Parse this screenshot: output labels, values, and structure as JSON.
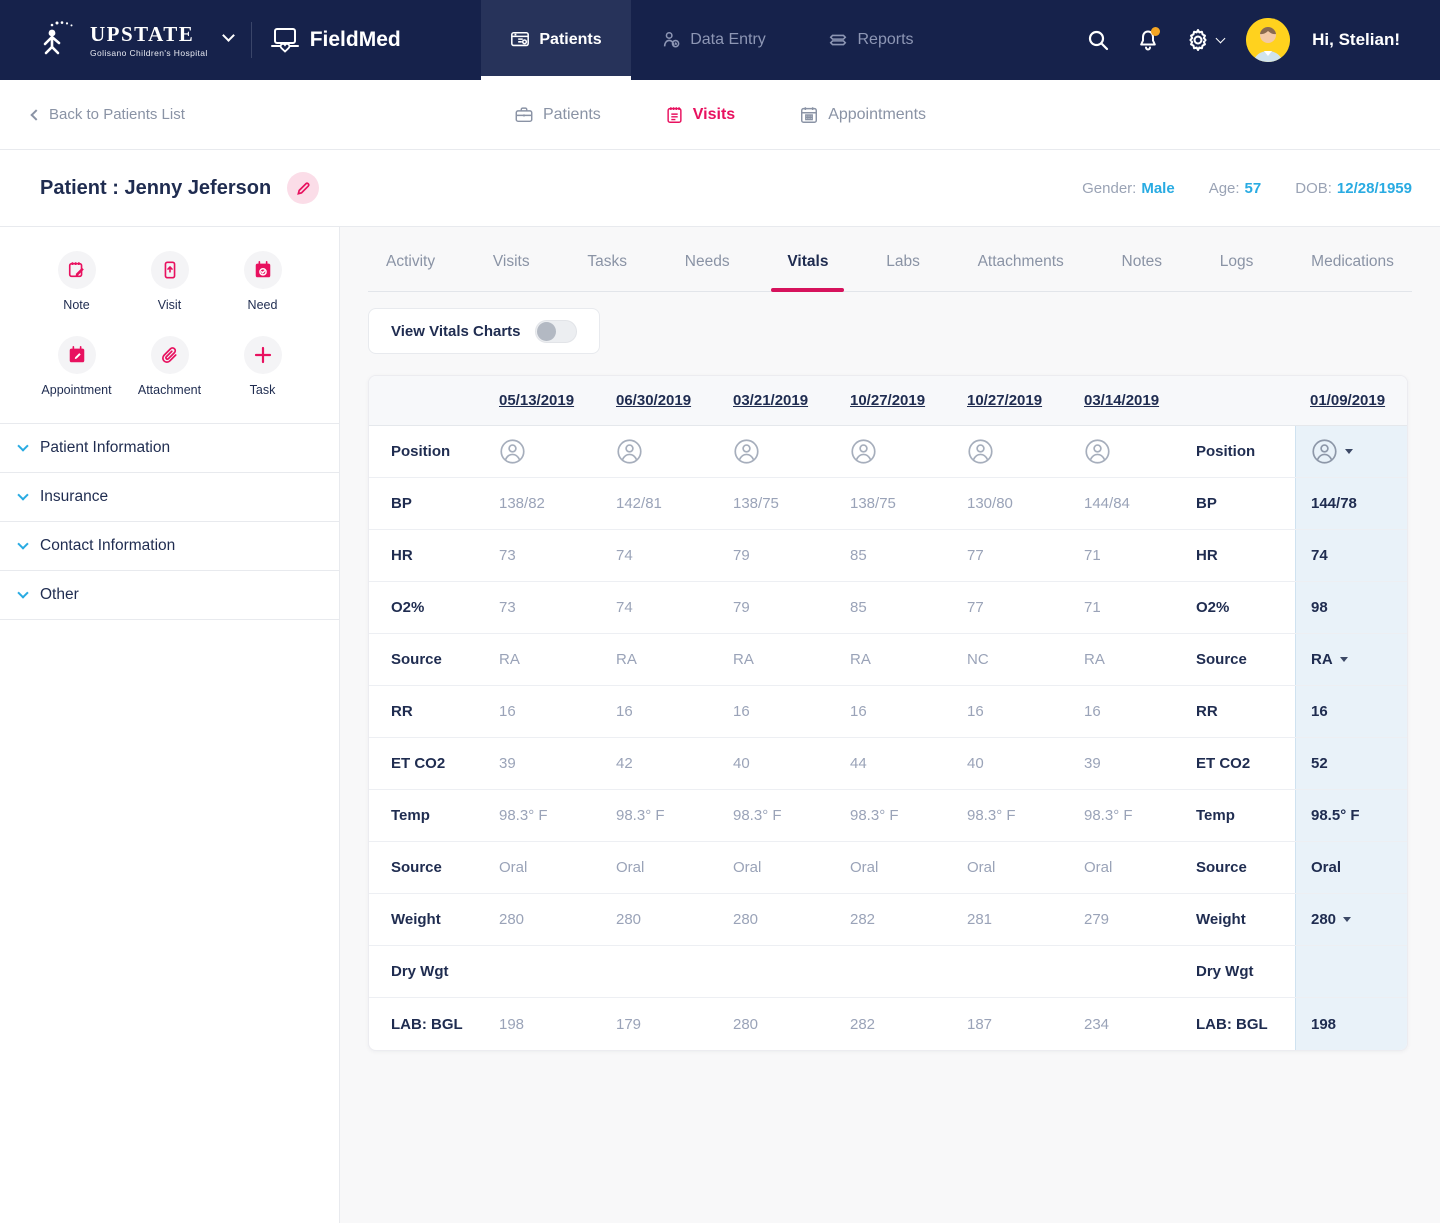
{
  "colors": {
    "navy": "#16224b",
    "accent": "#e8115f",
    "link_blue": "#29abe2",
    "highlight_col": "#e9f2f9",
    "notification_dot": "#f5a623"
  },
  "topnav": {
    "brand_name": "UPSTATE",
    "brand_subtitle": "Golisano Children's Hospital",
    "app_name": "FieldMed",
    "tabs": [
      {
        "label": "Patients",
        "icon": "patients-icon",
        "active": true
      },
      {
        "label": "Data Entry",
        "icon": "data-entry-icon",
        "active": false
      },
      {
        "label": "Reports",
        "icon": "reports-icon",
        "active": false
      }
    ],
    "greeting": "Hi, Stelian!"
  },
  "subnav": {
    "back_label": "Back to Patients List",
    "tabs": [
      {
        "label": "Patients",
        "icon": "briefcase-icon",
        "active": false
      },
      {
        "label": "Visits",
        "icon": "visits-icon",
        "active": true
      },
      {
        "label": "Appointments",
        "icon": "appointments-icon",
        "active": false
      }
    ]
  },
  "patient_header": {
    "title": "Patient : Jenny Jeferson",
    "fields": [
      {
        "label": "Gender:",
        "value": "Male"
      },
      {
        "label": "Age:",
        "value": "57"
      },
      {
        "label": "DOB:",
        "value": "12/28/1959"
      }
    ]
  },
  "sidebar": {
    "actions": [
      {
        "label": "Note",
        "icon": "note-icon"
      },
      {
        "label": "Visit",
        "icon": "visit-icon"
      },
      {
        "label": "Need",
        "icon": "need-icon"
      },
      {
        "label": "Appointment",
        "icon": "appointment-icon"
      },
      {
        "label": "Attachment",
        "icon": "attachment-icon"
      },
      {
        "label": "Task",
        "icon": "task-icon"
      }
    ],
    "sections": [
      {
        "label": "Patient Information"
      },
      {
        "label": "Insurance"
      },
      {
        "label": "Contact Information"
      },
      {
        "label": "Other"
      }
    ]
  },
  "main": {
    "tabs": [
      {
        "label": "Activity"
      },
      {
        "label": "Visits"
      },
      {
        "label": "Tasks"
      },
      {
        "label": "Needs"
      },
      {
        "label": "Vitals",
        "active": true
      },
      {
        "label": "Labs"
      },
      {
        "label": "Attachments"
      },
      {
        "label": "Notes"
      },
      {
        "label": "Logs"
      },
      {
        "label": "Medications"
      }
    ],
    "toggle_label": "View Vitals Charts",
    "toggle_on": false
  },
  "vitals_table": {
    "dates": [
      "05/13/2019",
      "06/30/2019",
      "03/21/2019",
      "10/27/2019",
      "10/27/2019",
      "03/14/2019"
    ],
    "current_date": "01/09/2019",
    "rows": [
      {
        "label": "Position",
        "type": "person-icon",
        "values": [
          "",
          "",
          "",
          "",
          "",
          ""
        ],
        "current": ""
      },
      {
        "label": "BP",
        "values": [
          "138/82",
          "142/81",
          "138/75",
          "138/75",
          "130/80",
          "144/84"
        ],
        "current": "144/78"
      },
      {
        "label": "HR",
        "values": [
          "73",
          "74",
          "79",
          "85",
          "77",
          "71"
        ],
        "current": "74"
      },
      {
        "label": "O2%",
        "values": [
          "73",
          "74",
          "79",
          "85",
          "77",
          "71"
        ],
        "current": "98"
      },
      {
        "label": "Source",
        "values": [
          "RA",
          "RA",
          "RA",
          "RA",
          "NC",
          "RA"
        ],
        "current": "RA",
        "dropdown": true
      },
      {
        "label": "RR",
        "values": [
          "16",
          "16",
          "16",
          "16",
          "16",
          "16"
        ],
        "current": "16"
      },
      {
        "label": "ET CO2",
        "values": [
          "39",
          "42",
          "40",
          "44",
          "40",
          "39"
        ],
        "current": "52"
      },
      {
        "label": "Temp",
        "values": [
          "98.3° F",
          "98.3° F",
          "98.3° F",
          "98.3° F",
          "98.3° F",
          "98.3° F"
        ],
        "current": "98.5° F"
      },
      {
        "label": "Source",
        "values": [
          "Oral",
          "Oral",
          "Oral",
          "Oral",
          "Oral",
          "Oral"
        ],
        "current": "Oral"
      },
      {
        "label": "Weight",
        "values": [
          "280",
          "280",
          "280",
          "282",
          "281",
          "279"
        ],
        "current": "280",
        "dropdown": true
      },
      {
        "label": "Dry Wgt",
        "values": [
          "",
          "",
          "",
          "",
          "",
          ""
        ],
        "current": ""
      },
      {
        "label": "LAB: BGL",
        "values": [
          "198",
          "179",
          "280",
          "282",
          "187",
          "234"
        ],
        "current": "198"
      }
    ]
  }
}
